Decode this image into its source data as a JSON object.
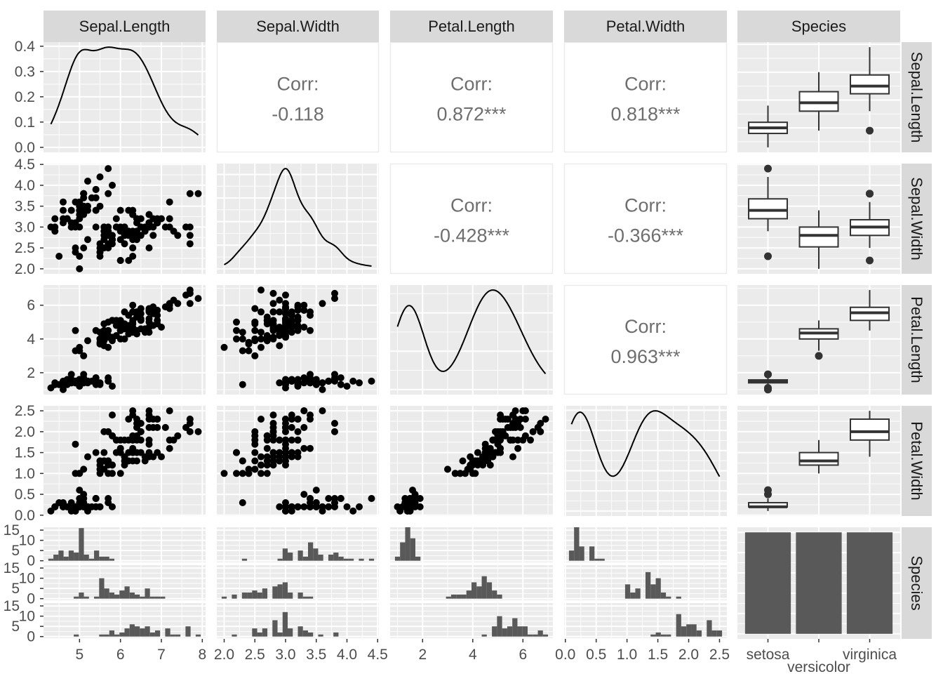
{
  "chart_data": {
    "type": "scatter-matrix",
    "variables": [
      "Sepal.Length",
      "Sepal.Width",
      "Petal.Length",
      "Petal.Width",
      "Species"
    ],
    "species": [
      "setosa",
      "versicolor",
      "virginica"
    ],
    "x_ticks": [
      [
        "5",
        "6",
        "7",
        "8"
      ],
      [
        "2.0",
        "2.5",
        "3.0",
        "3.5",
        "4.0",
        "4.5"
      ],
      [
        "2",
        "4",
        "6"
      ],
      [
        "0.0",
        "0.5",
        "1.0",
        "1.5",
        "2.0",
        "2.5"
      ],
      [
        "setosa",
        "versicolor",
        "virginica"
      ]
    ],
    "y_ticks": [
      [
        "0.0",
        "0.1",
        "0.2",
        "0.3",
        "0.4"
      ],
      [
        "2.0",
        "2.5",
        "3.0",
        "3.5",
        "4.0",
        "4.5"
      ],
      [
        "2",
        "4",
        "6"
      ],
      [
        "0.0",
        "0.5",
        "1.0",
        "1.5",
        "2.0",
        "2.5"
      ],
      [
        "0",
        "5",
        "10",
        "15"
      ]
    ],
    "correlations": [
      {
        "row": 0,
        "col": 1,
        "label": "Corr:",
        "value": "-0.118"
      },
      {
        "row": 0,
        "col": 2,
        "label": "Corr:",
        "value": "0.872***"
      },
      {
        "row": 0,
        "col": 3,
        "label": "Corr:",
        "value": "0.818***"
      },
      {
        "row": 1,
        "col": 2,
        "label": "Corr:",
        "value": "-0.428***"
      },
      {
        "row": 1,
        "col": 3,
        "label": "Corr:",
        "value": "-0.366***"
      },
      {
        "row": 2,
        "col": 3,
        "label": "Corr:",
        "value": "0.963***"
      }
    ],
    "panels": {
      "diagonal": "density",
      "upper": "correlation",
      "lower": "scatter",
      "species_column": "boxplot",
      "species_row": "histogram faceted by species",
      "species_species": "bar"
    },
    "species_counts": [
      50,
      50,
      50
    ],
    "colors": {
      "panel_background": "#EBEBEB",
      "grid": "#FFFFFF",
      "strip_background": "#D9D9D9",
      "points": "#000000",
      "bars": "#595959",
      "correlation_text": "#6E6E6E"
    },
    "observations": {
      "setosa": [
        [
          5.1,
          3.5,
          1.4,
          0.2
        ],
        [
          4.9,
          3.0,
          1.4,
          0.2
        ],
        [
          4.7,
          3.2,
          1.3,
          0.2
        ],
        [
          4.6,
          3.1,
          1.5,
          0.2
        ],
        [
          5.0,
          3.6,
          1.4,
          0.2
        ],
        [
          5.4,
          3.9,
          1.7,
          0.4
        ],
        [
          4.6,
          3.4,
          1.4,
          0.3
        ],
        [
          5.0,
          3.4,
          1.5,
          0.2
        ],
        [
          4.4,
          2.9,
          1.4,
          0.2
        ],
        [
          4.9,
          3.1,
          1.5,
          0.1
        ],
        [
          5.4,
          3.7,
          1.5,
          0.2
        ],
        [
          4.8,
          3.4,
          1.6,
          0.2
        ],
        [
          4.8,
          3.0,
          1.4,
          0.1
        ],
        [
          4.3,
          3.0,
          1.1,
          0.1
        ],
        [
          5.8,
          4.0,
          1.2,
          0.2
        ],
        [
          5.7,
          4.4,
          1.5,
          0.4
        ],
        [
          5.4,
          3.9,
          1.3,
          0.4
        ],
        [
          5.1,
          3.5,
          1.4,
          0.3
        ],
        [
          5.7,
          3.8,
          1.7,
          0.3
        ],
        [
          5.1,
          3.8,
          1.5,
          0.3
        ],
        [
          5.4,
          3.4,
          1.7,
          0.2
        ],
        [
          5.1,
          3.7,
          1.5,
          0.4
        ],
        [
          4.6,
          3.6,
          1.0,
          0.2
        ],
        [
          5.1,
          3.3,
          1.7,
          0.5
        ],
        [
          4.8,
          3.4,
          1.9,
          0.2
        ],
        [
          5.0,
          3.0,
          1.6,
          0.2
        ],
        [
          5.0,
          3.4,
          1.6,
          0.4
        ],
        [
          5.2,
          3.5,
          1.5,
          0.2
        ],
        [
          5.2,
          3.4,
          1.4,
          0.2
        ],
        [
          4.7,
          3.2,
          1.6,
          0.2
        ],
        [
          4.8,
          3.1,
          1.6,
          0.2
        ],
        [
          5.4,
          3.4,
          1.5,
          0.4
        ],
        [
          5.2,
          4.1,
          1.5,
          0.1
        ],
        [
          5.5,
          4.2,
          1.4,
          0.2
        ],
        [
          4.9,
          3.1,
          1.5,
          0.2
        ],
        [
          5.0,
          3.2,
          1.2,
          0.2
        ],
        [
          5.5,
          3.5,
          1.3,
          0.2
        ],
        [
          4.9,
          3.6,
          1.4,
          0.1
        ],
        [
          4.4,
          3.0,
          1.3,
          0.2
        ],
        [
          5.1,
          3.4,
          1.5,
          0.2
        ],
        [
          5.0,
          3.5,
          1.3,
          0.3
        ],
        [
          4.5,
          2.3,
          1.3,
          0.3
        ],
        [
          4.4,
          3.2,
          1.3,
          0.2
        ],
        [
          5.0,
          3.5,
          1.6,
          0.6
        ],
        [
          5.1,
          3.8,
          1.9,
          0.4
        ],
        [
          4.8,
          3.0,
          1.4,
          0.3
        ],
        [
          5.1,
          3.8,
          1.6,
          0.2
        ],
        [
          4.6,
          3.2,
          1.4,
          0.2
        ],
        [
          5.3,
          3.7,
          1.5,
          0.2
        ],
        [
          5.0,
          3.3,
          1.4,
          0.2
        ]
      ],
      "versicolor": [
        [
          7.0,
          3.2,
          4.7,
          1.4
        ],
        [
          6.4,
          3.2,
          4.5,
          1.5
        ],
        [
          6.9,
          3.1,
          4.9,
          1.5
        ],
        [
          5.5,
          2.3,
          4.0,
          1.3
        ],
        [
          6.5,
          2.8,
          4.6,
          1.5
        ],
        [
          5.7,
          2.8,
          4.5,
          1.3
        ],
        [
          6.3,
          3.3,
          4.7,
          1.6
        ],
        [
          4.9,
          2.4,
          3.3,
          1.0
        ],
        [
          6.6,
          2.9,
          4.6,
          1.3
        ],
        [
          5.2,
          2.7,
          3.9,
          1.4
        ],
        [
          5.0,
          2.0,
          3.5,
          1.0
        ],
        [
          5.9,
          3.0,
          4.2,
          1.5
        ],
        [
          6.0,
          2.2,
          4.0,
          1.0
        ],
        [
          6.1,
          2.9,
          4.7,
          1.4
        ],
        [
          5.6,
          2.9,
          3.6,
          1.3
        ],
        [
          6.7,
          3.1,
          4.4,
          1.4
        ],
        [
          5.6,
          3.0,
          4.5,
          1.5
        ],
        [
          5.8,
          2.7,
          4.1,
          1.0
        ],
        [
          6.2,
          2.2,
          4.5,
          1.5
        ],
        [
          5.6,
          2.5,
          3.9,
          1.1
        ],
        [
          5.9,
          3.2,
          4.8,
          1.8
        ],
        [
          6.1,
          2.8,
          4.0,
          1.3
        ],
        [
          6.3,
          2.5,
          4.9,
          1.5
        ],
        [
          6.1,
          2.8,
          4.7,
          1.2
        ],
        [
          6.4,
          2.9,
          4.3,
          1.3
        ],
        [
          6.6,
          3.0,
          4.4,
          1.4
        ],
        [
          6.8,
          2.8,
          4.8,
          1.4
        ],
        [
          6.7,
          3.0,
          5.0,
          1.7
        ],
        [
          6.0,
          2.9,
          4.5,
          1.5
        ],
        [
          5.7,
          2.6,
          3.5,
          1.0
        ],
        [
          5.5,
          2.4,
          3.8,
          1.1
        ],
        [
          5.5,
          2.4,
          3.7,
          1.0
        ],
        [
          5.8,
          2.7,
          3.9,
          1.2
        ],
        [
          6.0,
          2.7,
          5.1,
          1.6
        ],
        [
          5.4,
          3.0,
          4.5,
          1.5
        ],
        [
          6.0,
          3.4,
          4.5,
          1.6
        ],
        [
          6.7,
          3.1,
          4.7,
          1.5
        ],
        [
          6.3,
          2.3,
          4.4,
          1.3
        ],
        [
          5.6,
          3.0,
          4.1,
          1.3
        ],
        [
          5.5,
          2.5,
          4.0,
          1.3
        ],
        [
          5.5,
          2.6,
          4.4,
          1.2
        ],
        [
          6.1,
          3.0,
          4.6,
          1.4
        ],
        [
          5.8,
          2.6,
          4.0,
          1.2
        ],
        [
          5.0,
          2.3,
          3.3,
          1.0
        ],
        [
          5.6,
          2.7,
          4.2,
          1.3
        ],
        [
          5.7,
          3.0,
          4.2,
          1.2
        ],
        [
          5.7,
          2.9,
          4.2,
          1.3
        ],
        [
          6.2,
          2.9,
          4.3,
          1.3
        ],
        [
          5.1,
          2.5,
          3.0,
          1.1
        ],
        [
          5.7,
          2.8,
          4.1,
          1.3
        ]
      ],
      "virginica": [
        [
          6.3,
          3.3,
          6.0,
          2.5
        ],
        [
          5.8,
          2.7,
          5.1,
          1.9
        ],
        [
          7.1,
          3.0,
          5.9,
          2.1
        ],
        [
          6.3,
          2.9,
          5.6,
          1.8
        ],
        [
          6.5,
          3.0,
          5.8,
          2.2
        ],
        [
          7.6,
          3.0,
          6.6,
          2.1
        ],
        [
          4.9,
          2.5,
          4.5,
          1.7
        ],
        [
          7.3,
          2.9,
          6.3,
          1.8
        ],
        [
          6.7,
          2.5,
          5.8,
          1.8
        ],
        [
          7.2,
          3.6,
          6.1,
          2.5
        ],
        [
          6.5,
          3.2,
          5.1,
          2.0
        ],
        [
          6.4,
          2.7,
          5.3,
          1.9
        ],
        [
          6.8,
          3.0,
          5.5,
          2.1
        ],
        [
          5.7,
          2.5,
          5.0,
          2.0
        ],
        [
          5.8,
          2.8,
          5.1,
          2.4
        ],
        [
          6.4,
          3.2,
          5.3,
          2.3
        ],
        [
          6.5,
          3.0,
          5.5,
          1.8
        ],
        [
          7.7,
          3.8,
          6.7,
          2.2
        ],
        [
          7.7,
          2.6,
          6.9,
          2.3
        ],
        [
          6.0,
          2.2,
          5.0,
          1.5
        ],
        [
          6.9,
          3.2,
          5.7,
          2.3
        ],
        [
          5.6,
          2.8,
          4.9,
          2.0
        ],
        [
          7.7,
          2.8,
          6.7,
          2.0
        ],
        [
          6.3,
          2.7,
          4.9,
          1.8
        ],
        [
          6.7,
          3.3,
          5.7,
          2.1
        ],
        [
          7.2,
          3.2,
          6.0,
          1.8
        ],
        [
          6.2,
          2.8,
          4.8,
          1.8
        ],
        [
          6.1,
          3.0,
          4.9,
          1.8
        ],
        [
          6.4,
          2.8,
          5.6,
          2.1
        ],
        [
          7.2,
          3.0,
          5.8,
          1.6
        ],
        [
          7.4,
          2.8,
          6.1,
          1.9
        ],
        [
          7.9,
          3.8,
          6.4,
          2.0
        ],
        [
          6.4,
          2.8,
          5.6,
          2.2
        ],
        [
          6.3,
          2.8,
          5.1,
          1.5
        ],
        [
          6.1,
          2.6,
          5.6,
          1.4
        ],
        [
          7.7,
          3.0,
          6.1,
          2.3
        ],
        [
          6.3,
          3.4,
          5.6,
          2.4
        ],
        [
          6.4,
          3.1,
          5.5,
          1.8
        ],
        [
          6.0,
          3.0,
          4.8,
          1.8
        ],
        [
          6.9,
          3.1,
          5.4,
          2.1
        ],
        [
          6.7,
          3.1,
          5.6,
          2.4
        ],
        [
          6.9,
          3.1,
          5.1,
          2.3
        ],
        [
          5.8,
          2.7,
          5.1,
          1.9
        ],
        [
          6.8,
          3.2,
          5.9,
          2.3
        ],
        [
          6.7,
          3.3,
          5.7,
          2.5
        ],
        [
          6.7,
          3.0,
          5.2,
          2.3
        ],
        [
          6.3,
          2.5,
          5.0,
          1.9
        ],
        [
          6.5,
          3.0,
          5.2,
          2.0
        ],
        [
          6.2,
          3.4,
          5.4,
          2.3
        ],
        [
          5.9,
          3.0,
          5.1,
          1.8
        ]
      ]
    }
  }
}
